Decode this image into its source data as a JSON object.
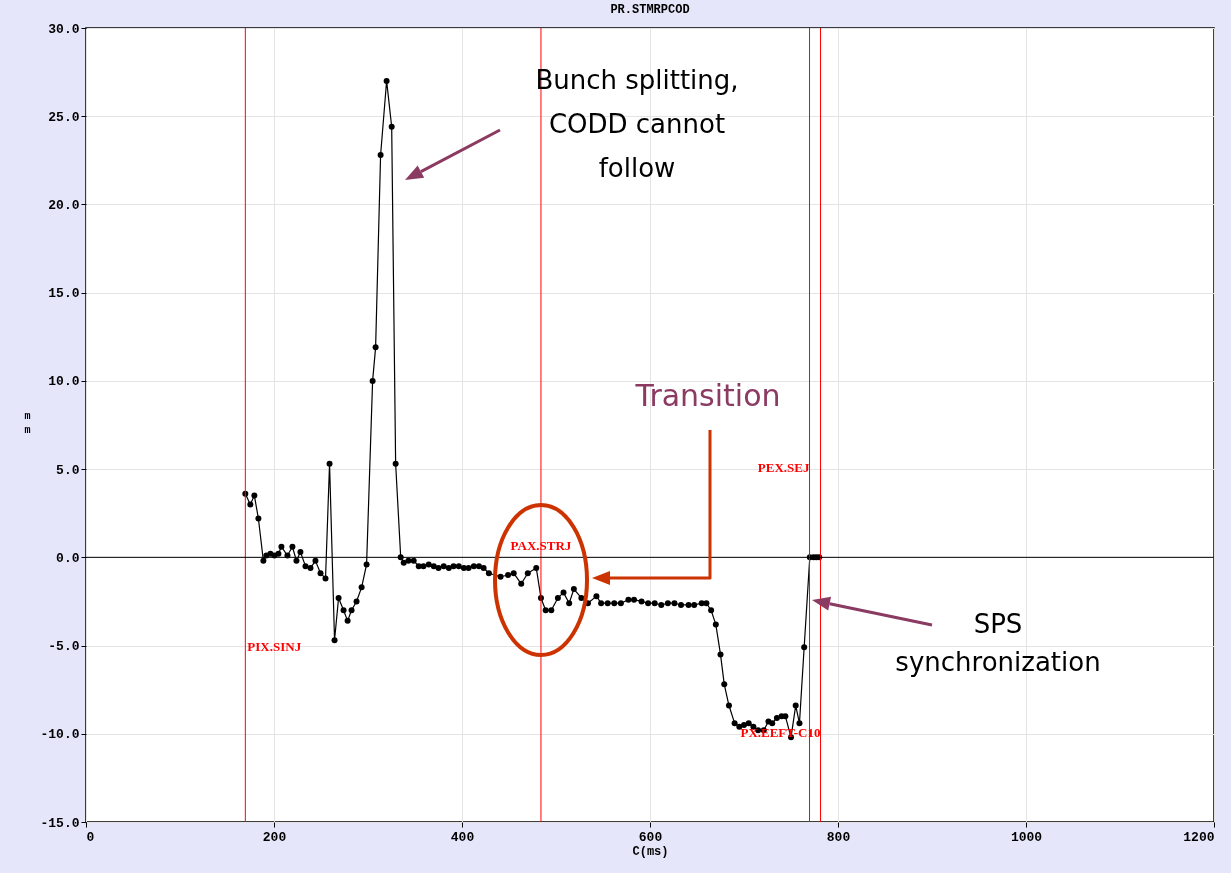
{
  "chart_data": {
    "type": "line",
    "title": "PR.STMRPCOD",
    "xlabel": "C(ms)",
    "ylabel": "mm",
    "x": [
      169.5,
      174.8,
      179.1,
      183.4,
      188.7,
      191.9,
      196.2,
      200.4,
      204.7,
      207.9,
      214.3,
      219.6,
      223.9,
      228.1,
      233.5,
      238.8,
      244.1,
      249.5,
      254.8,
      259.1,
      264.4,
      268.7,
      274,
      278.3,
      282.5,
      287.8,
      293.2,
      298.5,
      304.9,
      308.1,
      313.4,
      319.8,
      325.2,
      329.4,
      334.8,
      338,
      343,
      348.6,
      354,
      359,
      364.6,
      370,
      375,
      380.6,
      386,
      391,
      396.6,
      402,
      407,
      412.6,
      418,
      423,
      428.6,
      441,
      449,
      455,
      463,
      470,
      479,
      484,
      489,
      495,
      502,
      508,
      514,
      519,
      527,
      534,
      543,
      548,
      555,
      562,
      569,
      577,
      583,
      591,
      598,
      605,
      612,
      619,
      626,
      633,
      641,
      647,
      655,
      660,
      665,
      670,
      675,
      679,
      684,
      690,
      695,
      700,
      705,
      710,
      715,
      721,
      726,
      730,
      735,
      740,
      744,
      750,
      755,
      759,
      764,
      770,
      774,
      777,
      780
    ],
    "series": [
      {
        "color": "#000000",
        "values": [
          3.6,
          3.0,
          3.5,
          2.2,
          -0.2,
          0.1,
          0.2,
          0.1,
          0.2,
          0.6,
          0.1,
          0.6,
          -0.2,
          0.3,
          -0.5,
          -0.6,
          -0.2,
          -0.9,
          -1.2,
          5.3,
          -4.7,
          -2.3,
          -3.0,
          -3.6,
          -3.0,
          -2.5,
          -1.7,
          -0.4,
          10.0,
          11.9,
          22.8,
          27.0,
          24.4,
          5.3,
          0.0,
          -0.3,
          -0.2,
          -0.2,
          -0.5,
          -0.5,
          -0.4,
          -0.5,
          -0.6,
          -0.5,
          -0.6,
          -0.5,
          -0.5,
          -0.6,
          -0.6,
          -0.5,
          -0.5,
          -0.6,
          -0.9,
          -1.1,
          -1.0,
          -0.9,
          -1.5,
          -0.9,
          -0.6,
          -2.3,
          -3.0,
          -3.0,
          -2.3,
          -2.0,
          -2.6,
          -1.8,
          -2.3,
          -2.6,
          -2.2,
          -2.6,
          -2.6,
          -2.6,
          -2.6,
          -2.4,
          -2.4,
          -2.5,
          -2.6,
          -2.6,
          -2.7,
          -2.6,
          -2.6,
          -2.7,
          -2.7,
          -2.7,
          -2.6,
          -2.6,
          -3.0,
          -3.8,
          -5.5,
          -7.2,
          -8.4,
          -9.4,
          -9.6,
          -9.5,
          -9.4,
          -9.6,
          -9.8,
          -9.8,
          -9.3,
          -9.4,
          -9.1,
          -9.0,
          -9.0,
          -10.2,
          -8.4,
          -9.4,
          -5.1,
          0.0,
          0.0,
          0.0,
          0.0
        ]
      }
    ],
    "xlim": [
      0,
      1200
    ],
    "xticks": [
      0,
      200,
      400,
      600,
      800,
      1000,
      1200
    ],
    "ylim": [
      -15,
      30
    ],
    "yticks": [
      {
        "value": 30,
        "label": "30.0"
      },
      {
        "value": 25,
        "label": "25.0"
      },
      {
        "value": 20,
        "label": "20.0"
      },
      {
        "value": 15,
        "label": "15.0"
      },
      {
        "value": 10,
        "label": "10.0"
      },
      {
        "value": 5,
        "label": "5.0"
      },
      {
        "value": 0,
        "label": "0.0"
      },
      {
        "value": -5,
        "label": "-5.0"
      },
      {
        "value": -10,
        "label": "-10.0"
      },
      {
        "value": -15,
        "label": "-15.0"
      }
    ],
    "grid": true,
    "marker": "circle",
    "line_style": "solid",
    "ref_lines": [
      {
        "axis": "x",
        "value": 169.5,
        "label": "PIX.SINJ",
        "color": "#ff0000"
      },
      {
        "axis": "x",
        "value": 484,
        "label": "PAX.STRJ",
        "color": "#ff0000"
      },
      {
        "axis": "x",
        "value": 769.7,
        "label": "PEX.SEJ",
        "color": "#ff0000"
      },
      {
        "axis": "x",
        "value": 781.4,
        "label": "PX.EEFT-C10",
        "color": "#ff0000"
      },
      {
        "axis": "y",
        "value": 0,
        "color": "#000000"
      }
    ],
    "annotations": [
      "Bunch splitting, CODD cannot follow",
      "Transition",
      "SPS synchronization"
    ]
  }
}
